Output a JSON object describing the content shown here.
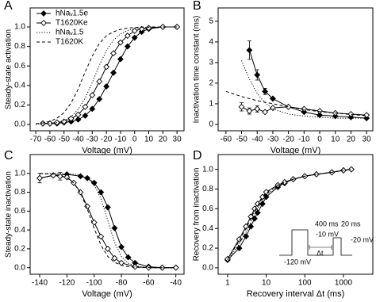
{
  "chart_data": [
    {
      "type": "line",
      "panel": "A",
      "xlabel": "Voltage (mV)",
      "ylabel": "Steady-state activation",
      "xlim": [
        -74,
        35
      ],
      "ylim": [
        -0.065,
        1.195
      ],
      "xticks": [
        -70,
        -60,
        -50,
        -40,
        -30,
        -20,
        -10,
        0,
        10,
        20,
        30
      ],
      "yticks": [
        {
          "value": 0,
          "label": "0.0"
        },
        0.2,
        0.4,
        0.6,
        0.8,
        {
          "value": 1,
          "label": "1.0"
        }
      ],
      "legend": "upper left",
      "series": [
        {
          "name": "hNaᵥ1.5e",
          "color": "#000",
          "marker": "diamond",
          "fill": "#000",
          "line": "solid",
          "x": [
            -65,
            -60,
            -55,
            -50,
            -45,
            -40,
            -35,
            -30,
            -25,
            -20,
            -15,
            -10,
            -5,
            0,
            5,
            10,
            20,
            30
          ],
          "values": [
            0.01,
            0.01,
            0.01,
            0.02,
            0.03,
            0.05,
            0.09,
            0.16,
            0.26,
            0.39,
            0.53,
            0.67,
            0.8,
            0.89,
            0.95,
            0.98,
            1,
            1
          ]
        },
        {
          "name": "T1620Ke",
          "color": "#000",
          "marker": "diamond",
          "fill": "#fff",
          "line": "solid",
          "x": [
            -65,
            -60,
            -55,
            -50,
            -45,
            -40,
            -35,
            -30,
            -25,
            -20,
            -15,
            -10,
            -5,
            0,
            5,
            10,
            20,
            30
          ],
          "values": [
            0.01,
            0.01,
            0.02,
            0.03,
            0.06,
            0.1,
            0.18,
            0.3,
            0.44,
            0.59,
            0.73,
            0.84,
            0.91,
            0.96,
            0.98,
            0.99,
            1,
            1
          ]
        },
        {
          "name": "hNaᵥ1.5",
          "color": "#000",
          "line": "dotted",
          "x": [
            -70,
            -65,
            -60,
            -55,
            -50,
            -45,
            -40,
            -35,
            -30,
            -25,
            -20,
            -15,
            -10,
            -5,
            0,
            5,
            10,
            15,
            20,
            25,
            30
          ],
          "values": [
            0.0025,
            0.005,
            0.01,
            0.021,
            0.041,
            0.081,
            0.153,
            0.269,
            0.429,
            0.606,
            0.758,
            0.865,
            0.929,
            0.964,
            0.982,
            0.991,
            0.996,
            0.998,
            0.999,
            1,
            1
          ]
        },
        {
          "name": "T1620K",
          "color": "#000",
          "line": "dashed",
          "x": [
            -70,
            -65,
            -60,
            -55,
            -50,
            -45,
            -40,
            -35,
            -30,
            -25,
            -20,
            -15,
            -10,
            -5,
            0,
            5,
            10,
            15,
            20,
            25,
            30
          ],
          "values": [
            0.007,
            0.016,
            0.032,
            0.064,
            0.12,
            0.22,
            0.36,
            0.54,
            0.7,
            0.83,
            0.91,
            0.95,
            0.975,
            0.988,
            0.994,
            0.997,
            0.999,
            1,
            1,
            1,
            1
          ]
        }
      ]
    },
    {
      "type": "line",
      "panel": "B",
      "xlabel": "Voltage (mV)",
      "ylabel": "Inactivation time constant (ms)",
      "xlim": [
        -65,
        34
      ],
      "ylim": [
        -0.31,
        5.65
      ],
      "xticks": [
        -60,
        -50,
        -40,
        -30,
        -20,
        -10,
        0,
        10,
        20,
        30
      ],
      "yticks": [
        0,
        1,
        2,
        3,
        4,
        5
      ],
      "series": [
        {
          "color": "#000",
          "marker": "diamond",
          "fill": "#000",
          "line": "solid",
          "x": [
            -45,
            -40,
            -35,
            -30,
            -20,
            -10,
            0,
            10,
            20,
            30
          ],
          "values": [
            3.6,
            2.4,
            1.6,
            1.25,
            0.85,
            0.6,
            0.45,
            0.4,
            0.35,
            0.3
          ],
          "errors": [
            0.45,
            0.25,
            0.15,
            null,
            null,
            null,
            null,
            null,
            null,
            null
          ]
        },
        {
          "color": "#000",
          "marker": "diamond",
          "fill": "#fff",
          "line": "solid",
          "x": [
            -50,
            -45,
            -40,
            -35,
            -30,
            -20,
            -10,
            0,
            10,
            20,
            30
          ],
          "values": [
            0.85,
            0.65,
            0.75,
            0.6,
            0.8,
            0.85,
            0.75,
            0.65,
            0.55,
            0.5,
            0.45
          ],
          "errors": [
            0.2,
            0.15,
            0.15,
            null,
            null,
            null,
            null,
            null,
            null,
            null,
            null
          ]
        },
        {
          "color": "#000",
          "line": "dotted",
          "x": [
            -50,
            -45,
            -40,
            -35,
            -30,
            -20,
            -10,
            0,
            10,
            20,
            30
          ],
          "values": [
            3.1,
            2.2,
            1.5,
            1.05,
            0.75,
            0.5,
            0.4,
            0.35,
            0.3,
            0.3,
            0.3
          ]
        },
        {
          "color": "#000",
          "line": "dashed",
          "x": [
            -60,
            -50,
            -40,
            -30,
            -20,
            -10,
            0,
            10,
            20,
            30
          ],
          "values": [
            1.6,
            1.35,
            1.15,
            1,
            0.85,
            0.72,
            0.62,
            0.55,
            0.48,
            0.42
          ]
        }
      ]
    },
    {
      "type": "line",
      "panel": "C",
      "xlabel": "Voltage (mV)",
      "ylabel": "Steady-state inactivation",
      "xlim": [
        -147,
        -34
      ],
      "ylim": [
        -0.07,
        1.2
      ],
      "xticks": [
        -140,
        -120,
        -100,
        -80,
        -60,
        -40
      ],
      "yticks": [
        {
          "value": 0,
          "label": "0.0"
        },
        0.2,
        0.4,
        0.6,
        0.8,
        {
          "value": 1,
          "label": "1.0"
        }
      ],
      "series": [
        {
          "color": "#000",
          "marker": "diamond",
          "fill": "#000",
          "line": "solid",
          "x": [
            -140,
            -130,
            -120,
            -110,
            -105,
            -100,
            -95,
            -90,
            -85,
            -80,
            -75,
            -70,
            -60,
            -50,
            -40
          ],
          "values": [
            0.95,
            0.98,
            0.99,
            0.97,
            0.95,
            0.9,
            0.8,
            0.64,
            0.42,
            0.22,
            0.11,
            0.05,
            0.01,
            0,
            0
          ],
          "errors": [
            0.05,
            null,
            null,
            null,
            null,
            null,
            null,
            null,
            null,
            null,
            null,
            null,
            null,
            null,
            null
          ]
        },
        {
          "color": "#000",
          "marker": "diamond",
          "fill": "#fff",
          "line": "solid",
          "x": [
            -140,
            -130,
            -125,
            -120,
            -115,
            -110,
            -105,
            -100,
            -95,
            -90,
            -85,
            -80,
            -70,
            -60,
            -50,
            -40
          ],
          "values": [
            0.95,
            0.98,
            0.97,
            0.96,
            0.9,
            0.8,
            0.65,
            0.48,
            0.33,
            0.2,
            0.1,
            0.05,
            0.01,
            0,
            0,
            0
          ],
          "errors": [
            null,
            null,
            0.04,
            null,
            null,
            null,
            null,
            null,
            null,
            null,
            null,
            null,
            null,
            null,
            null,
            null
          ]
        },
        {
          "color": "#000",
          "line": "dotted",
          "x": [
            -140,
            -135,
            -130,
            -125,
            -120,
            -115,
            -110,
            -105,
            -100,
            -95,
            -90,
            -85,
            -80,
            -75,
            -70,
            -65,
            -60,
            -55,
            -50,
            -45,
            -40
          ],
          "values": [
            1,
            1,
            1,
            0.999,
            0.998,
            0.993,
            0.982,
            0.953,
            0.881,
            0.731,
            0.5,
            0.269,
            0.119,
            0.047,
            0.018,
            0.007,
            0.002,
            0.001,
            0,
            0,
            0
          ]
        },
        {
          "color": "#000",
          "line": "dashed",
          "x": [
            -140,
            -135,
            -130,
            -125,
            -120,
            -115,
            -110,
            -105,
            -100,
            -95,
            -90,
            -85,
            -80,
            -75,
            -70,
            -65,
            -60,
            -55,
            -50,
            -45,
            -40
          ],
          "values": [
            0.998,
            0.996,
            0.991,
            0.979,
            0.953,
            0.898,
            0.791,
            0.622,
            0.417,
            0.238,
            0.119,
            0.056,
            0.025,
            0.011,
            0.005,
            0.002,
            0.001,
            0,
            0,
            0,
            0
          ]
        }
      ]
    },
    {
      "type": "line",
      "panel": "D",
      "xlabel": "Recovery interval Δt (ms)",
      "ylabel": "Recovery from inactivation",
      "xscale": "log",
      "xlim": [
        0.57,
        5760
      ],
      "ylim": [
        -0.065,
        1.15
      ],
      "xticks": [
        1,
        10,
        100,
        1000
      ],
      "yticks": [
        {
          "value": 0,
          "label": "0.0"
        },
        0.2,
        0.4,
        0.6,
        0.8,
        {
          "value": 1,
          "label": "1.0"
        }
      ],
      "annotations": [
        "400 ms",
        "-10 mV",
        "-120 mV",
        "20 ms",
        "-20 mV",
        "Δt"
      ],
      "series": [
        {
          "color": "#000",
          "marker": "diamond",
          "fill": "#000",
          "line": "solid",
          "x": [
            1,
            2,
            3,
            4,
            5,
            6,
            8,
            10,
            20,
            30,
            50,
            100,
            200,
            500,
            1000,
            1600
          ],
          "values": [
            0.08,
            0.2,
            0.32,
            0.42,
            0.5,
            0.56,
            0.65,
            0.72,
            0.82,
            0.86,
            0.9,
            0.93,
            0.95,
            0.97,
            0.99,
            1
          ]
        },
        {
          "color": "#000",
          "marker": "diamond",
          "fill": "#fff",
          "line": "solid",
          "x": [
            1,
            2,
            3,
            4,
            5,
            6,
            8,
            10,
            20,
            30,
            50,
            100,
            200,
            500,
            1000,
            1600
          ],
          "values": [
            0.09,
            0.29,
            0.42,
            0.52,
            0.6,
            0.65,
            0.72,
            0.77,
            0.84,
            0.87,
            0.9,
            0.93,
            0.95,
            0.97,
            0.99,
            1
          ]
        },
        {
          "color": "#000",
          "line": "dotted",
          "x": [
            1,
            2,
            3,
            4,
            5,
            6,
            8,
            10,
            20,
            30,
            50,
            100,
            200,
            500,
            1000,
            1600
          ],
          "values": [
            0.08,
            0.24,
            0.36,
            0.46,
            0.54,
            0.6,
            0.68,
            0.74,
            0.83,
            0.87,
            0.9,
            0.93,
            0.95,
            0.97,
            0.99,
            1
          ]
        },
        {
          "color": "#000",
          "line": "dashed",
          "x": [
            1,
            2,
            3,
            4,
            5,
            6,
            8,
            10,
            20,
            30,
            50,
            100,
            200,
            500,
            1000,
            1600
          ],
          "values": [
            0.09,
            0.27,
            0.4,
            0.5,
            0.58,
            0.63,
            0.71,
            0.76,
            0.84,
            0.87,
            0.9,
            0.93,
            0.95,
            0.97,
            0.99,
            1
          ]
        }
      ]
    }
  ]
}
